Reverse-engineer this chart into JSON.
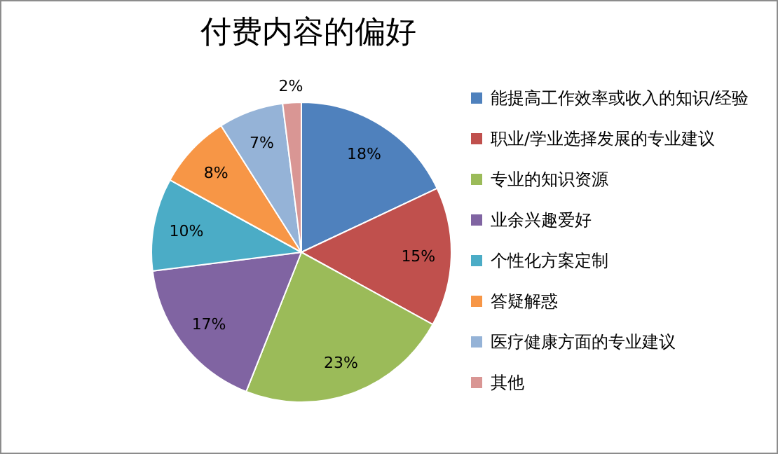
{
  "chart_data": {
    "type": "pie",
    "title": "付费内容的偏好",
    "categories": [
      "能提高工作效率或收入的知识/经验",
      "职业/学业选择发展的专业建议",
      "专业的知识资源",
      "业余兴趣爱好",
      "个性化方案定制",
      "答疑解惑",
      "医疗健康方面的专业建议",
      "其他"
    ],
    "values": [
      18,
      15,
      23,
      17,
      10,
      8,
      7,
      2
    ],
    "value_labels": [
      "18%",
      "15%",
      "23%",
      "17%",
      "10%",
      "8%",
      "7%",
      "2%"
    ],
    "colors": [
      "#4f81bd",
      "#c0504d",
      "#9bbb59",
      "#8064a2",
      "#4bacc6",
      "#f79646",
      "#95b3d7",
      "#d99694"
    ],
    "legend": "right"
  }
}
